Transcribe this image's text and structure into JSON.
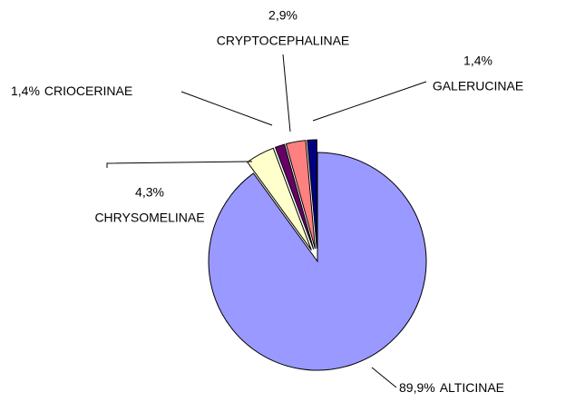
{
  "chart_data": {
    "type": "pie",
    "categories": [
      "ALTICINAE",
      "CHRYSOMELINAE",
      "CRIOCERINAE",
      "CRYPTOCEPHALINAE",
      "GALERUCINAE"
    ],
    "values": [
      89.9,
      4.3,
      1.4,
      2.9,
      1.4
    ],
    "value_labels": [
      "89,9%",
      "4,3%",
      "1,4%",
      "2,9%",
      "1,4%"
    ],
    "colors": [
      "#9999ff",
      "#ffffcc",
      "#660066",
      "#ff8080",
      "#000080"
    ]
  }
}
